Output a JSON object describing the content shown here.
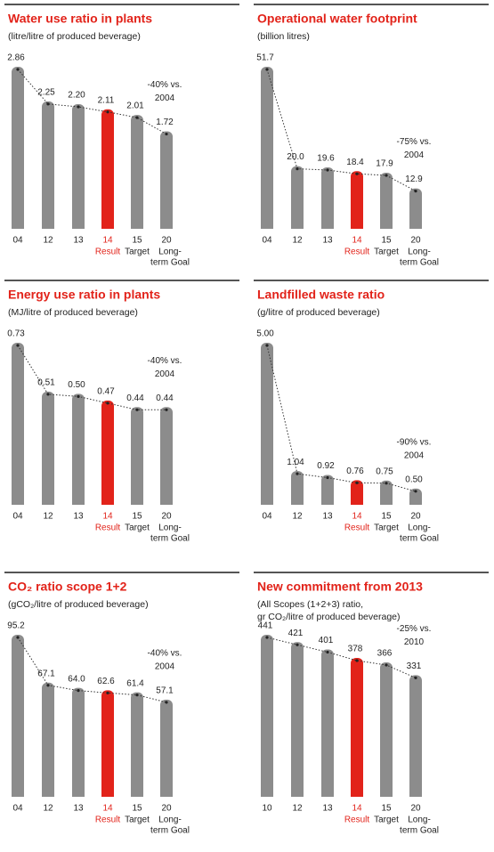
{
  "chart_data": [
    {
      "type": "bar",
      "title": "Water use ratio in plants",
      "subtitle": [
        "(litre/litre of produced beverage)"
      ],
      "categories": [
        "04",
        "12",
        "13",
        "14",
        "15",
        "20"
      ],
      "category_notes": [
        null,
        null,
        null,
        [
          "Result"
        ],
        [
          "Target"
        ],
        [
          "Long-",
          "term Goal"
        ]
      ],
      "values": [
        2.86,
        2.25,
        2.2,
        2.11,
        2.01,
        1.72
      ],
      "value_labels": [
        "2.86",
        "2.25",
        "2.20",
        "2.11",
        "2.01",
        "1.72"
      ],
      "colors": [
        "#8c8c8c",
        "#8c8c8c",
        "#8c8c8c",
        "#e2231a",
        "#8c8c8c",
        "#8c8c8c"
      ],
      "annotation": [
        "-40% vs.",
        "2004"
      ]
    },
    {
      "type": "bar",
      "title": "Operational water footprint",
      "subtitle": [
        "(billion litres)"
      ],
      "categories": [
        "04",
        "12",
        "13",
        "14",
        "15",
        "20"
      ],
      "category_notes": [
        null,
        null,
        null,
        [
          "Result"
        ],
        [
          "Target"
        ],
        [
          "Long-",
          "term Goal"
        ]
      ],
      "values": [
        51.7,
        20,
        19.6,
        18.4,
        17.9,
        12.9
      ],
      "value_labels": [
        "51.7",
        "20.0",
        "19.6",
        "18.4",
        "17.9",
        "12.9"
      ],
      "colors": [
        "#8c8c8c",
        "#8c8c8c",
        "#8c8c8c",
        "#e2231a",
        "#8c8c8c",
        "#8c8c8c"
      ],
      "annotation": [
        "-75% vs.",
        "2004"
      ]
    },
    {
      "type": "bar",
      "title": "Energy use ratio in plants",
      "subtitle": [
        "(MJ/litre of produced beverage)"
      ],
      "categories": [
        "04",
        "12",
        "13",
        "14",
        "15",
        "20"
      ],
      "category_notes": [
        null,
        null,
        null,
        [
          "Result"
        ],
        [
          "Target"
        ],
        [
          "Long-",
          "term Goal"
        ]
      ],
      "values": [
        0.73,
        0.51,
        0.5,
        0.47,
        0.44,
        0.44
      ],
      "value_labels": [
        "0.73",
        "0.51",
        "0.50",
        "0.47",
        "0.44",
        "0.44"
      ],
      "colors": [
        "#8c8c8c",
        "#8c8c8c",
        "#8c8c8c",
        "#e2231a",
        "#8c8c8c",
        "#8c8c8c"
      ],
      "annotation": [
        "-40% vs.",
        "2004"
      ]
    },
    {
      "type": "bar",
      "title": "Landfilled waste ratio",
      "subtitle": [
        "(g/litre of produced beverage)"
      ],
      "categories": [
        "04",
        "12",
        "13",
        "14",
        "15",
        "20"
      ],
      "category_notes": [
        null,
        null,
        null,
        [
          "Result"
        ],
        [
          "Target"
        ],
        [
          "Long-",
          "term Goal"
        ]
      ],
      "values": [
        5,
        1.04,
        0.92,
        0.76,
        0.75,
        0.5
      ],
      "value_labels": [
        "5.00",
        "1.04",
        "0.92",
        "0.76",
        "0.75",
        "0.50"
      ],
      "colors": [
        "#8c8c8c",
        "#8c8c8c",
        "#8c8c8c",
        "#e2231a",
        "#8c8c8c",
        "#8c8c8c"
      ],
      "annotation": [
        "-90% vs.",
        "2004"
      ]
    },
    {
      "type": "bar",
      "title": "CO₂ ratio scope 1+2",
      "subtitle": [
        "(gCO₂/litre of produced beverage)"
      ],
      "categories": [
        "04",
        "12",
        "13",
        "14",
        "15",
        "20"
      ],
      "category_notes": [
        null,
        null,
        null,
        [
          "Result"
        ],
        [
          "Target"
        ],
        [
          "Long-",
          "term Goal"
        ]
      ],
      "values": [
        95.2,
        67.1,
        64,
        62.6,
        61.4,
        57.1
      ],
      "value_labels": [
        "95.2",
        "67.1",
        "64.0",
        "62.6",
        "61.4",
        "57.1"
      ],
      "colors": [
        "#8c8c8c",
        "#8c8c8c",
        "#8c8c8c",
        "#e2231a",
        "#8c8c8c",
        "#8c8c8c"
      ],
      "annotation": [
        "-40% vs.",
        "2004"
      ]
    },
    {
      "type": "bar",
      "title": "New commitment from 2013",
      "subtitle": [
        "(All Scopes (1+2+3) ratio,",
        "gr CO₂/litre of produced beverage)"
      ],
      "categories": [
        "10",
        "12",
        "13",
        "14",
        "15",
        "20"
      ],
      "category_notes": [
        null,
        null,
        null,
        [
          "Result"
        ],
        [
          "Target"
        ],
        [
          "Long-",
          "term Goal"
        ]
      ],
      "values": [
        441,
        421,
        401,
        378,
        366,
        331
      ],
      "value_labels": [
        "441",
        "421",
        "401",
        "378",
        "366",
        "331"
      ],
      "colors": [
        "#8c8c8c",
        "#8c8c8c",
        "#8c8c8c",
        "#e2231a",
        "#8c8c8c",
        "#8c8c8c"
      ],
      "annotation": [
        "-25% vs.",
        "2010"
      ]
    }
  ]
}
